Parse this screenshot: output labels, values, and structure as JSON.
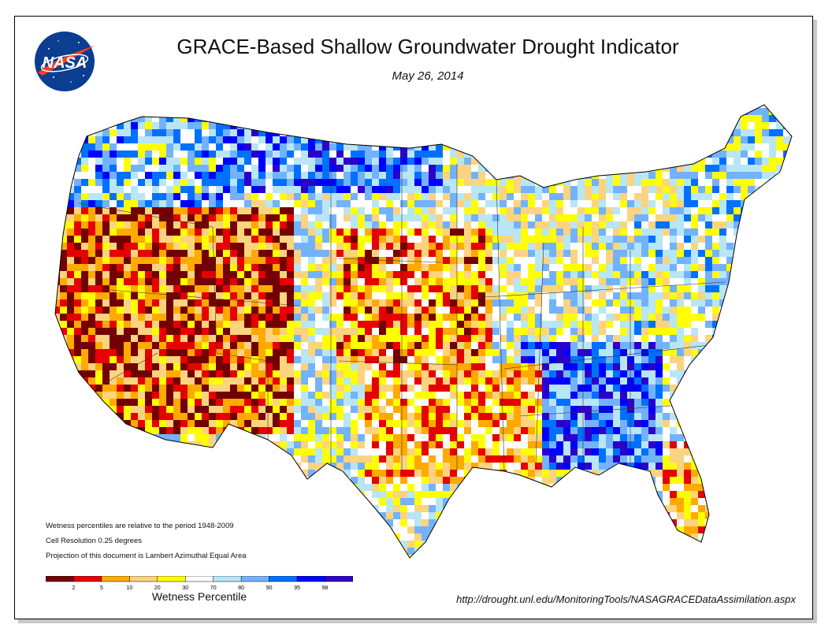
{
  "header": {
    "title": "GRACE-Based Shallow Groundwater Drought Indicator",
    "date": "May 26, 2014",
    "logo_text": "NASA"
  },
  "notes": [
    "Wetness percentiles are relative to the period 1948-2009",
    "Cell Resolution 0.25 degrees",
    "Projection of this document is Lambert Azimuthal Equal Area"
  ],
  "legend": {
    "title": "Wetness Percentile",
    "ticks": [
      "2",
      "5",
      "10",
      "20",
      "30",
      "70",
      "80",
      "90",
      "95",
      "98"
    ],
    "colors": [
      "#730000",
      "#e60000",
      "#ffaa00",
      "#fcd37f",
      "#ffff00",
      "#ffffff",
      "#b8e6f5",
      "#73b2ff",
      "#0070ff",
      "#0000ff",
      "#2c00cc"
    ]
  },
  "source_url": "http://drought.unl.edu/MonitoringTools/NASAGRACEDataAssimilation.aspx"
}
